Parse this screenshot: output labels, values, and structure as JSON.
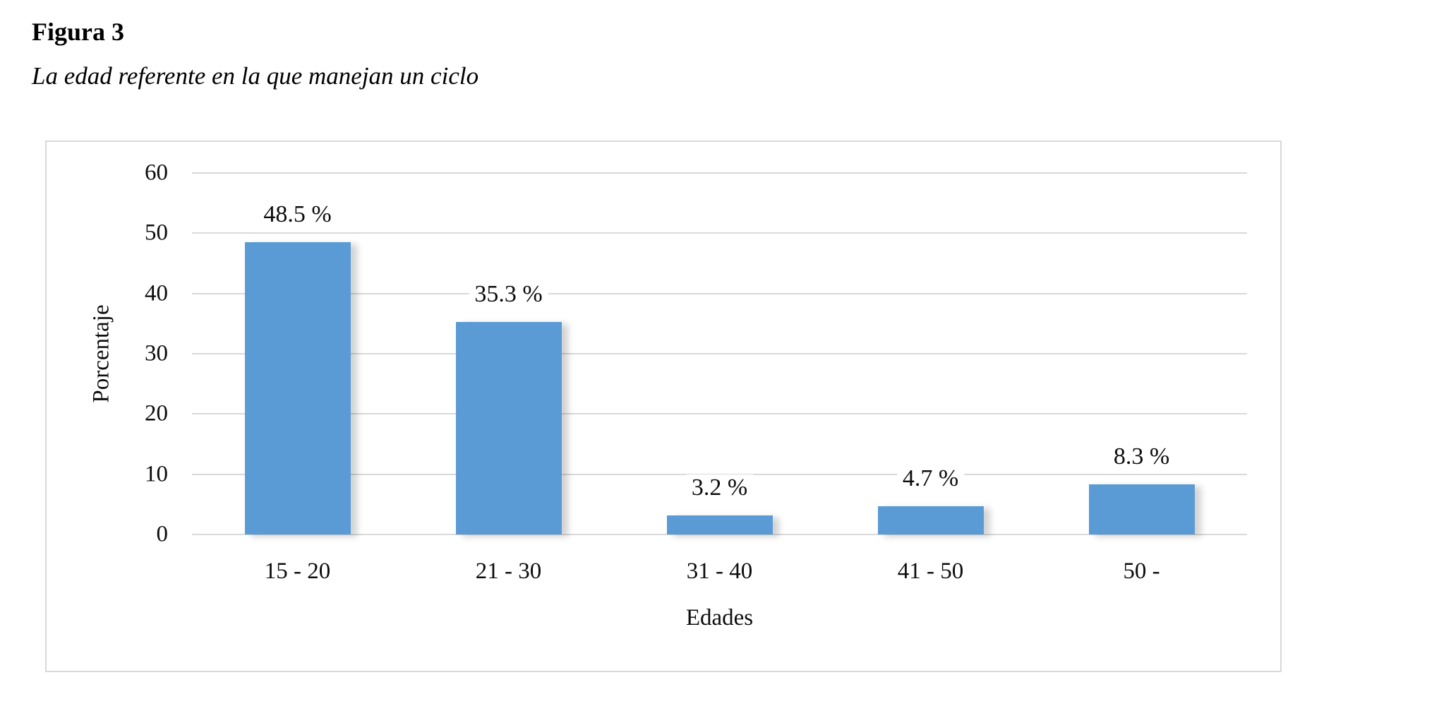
{
  "figure": {
    "title": "Figura 3",
    "subtitle": "La edad referente en la que manejan un ciclo"
  },
  "chart_data": {
    "type": "bar",
    "title": "",
    "categories": [
      "15 - 20",
      "21 - 30",
      "31 - 40",
      "41 - 50",
      "50 -"
    ],
    "values": [
      48.5,
      35.3,
      3.2,
      4.7,
      8.3
    ],
    "value_labels": [
      "48.5 %",
      "35.3 %",
      "3.2 %",
      "4.7 %",
      "8.3 %"
    ],
    "xlabel": "Edades",
    "ylabel": "Porcentaje",
    "ylim": [
      0,
      60
    ],
    "yticks": [
      0,
      10,
      20,
      30,
      40,
      50,
      60
    ],
    "grid": "horizontal",
    "legend": "none",
    "bar_color": "#5B9BD5",
    "gridline_color": "#d9d9d9",
    "frame_border_color": "#d9d9d9",
    "text_color": "#0d0d0d"
  }
}
